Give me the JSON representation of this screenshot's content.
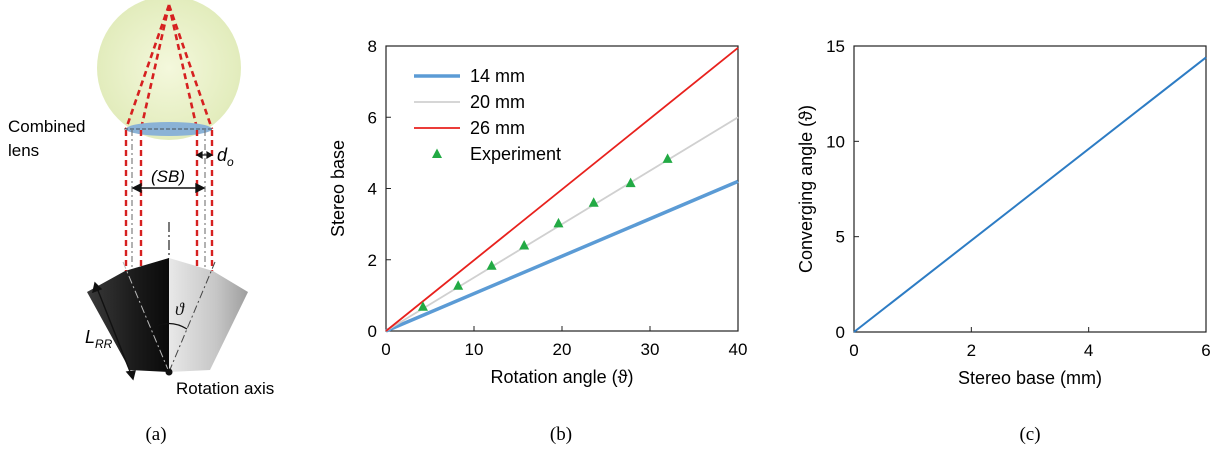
{
  "panel_a": {
    "lens_label_line1": "Combined",
    "lens_label_line2": "lens",
    "sb_label": "(SB)",
    "do_label_main": "d",
    "do_label_sub": "o",
    "theta_label": "ϑ",
    "lrr_label_main": "L",
    "lrr_label_sub": "RR",
    "rotation_axis_label": "Rotation axis",
    "caption": "(a)",
    "colors": {
      "glow": "#e9f1c6",
      "lens": "#8ab2d6",
      "dash": "#d62020"
    }
  },
  "panel_b": {
    "caption": "(b)"
  },
  "panel_c": {
    "caption": "(c)"
  },
  "chart_data": [
    {
      "type": "line",
      "xlabel": "Rotation angle (ϑ)",
      "ylabel": "Stereo base",
      "xlim": [
        0,
        40
      ],
      "ylim": [
        0,
        8
      ],
      "xticks": [
        0,
        10,
        20,
        30,
        40
      ],
      "yticks": [
        0,
        2,
        4,
        6,
        8
      ],
      "legend_position": "top-left",
      "series": [
        {
          "name": "14 mm",
          "kind": "line",
          "color": "#5b9bd5",
          "width": 3.5,
          "x": [
            0,
            40
          ],
          "y": [
            0,
            4.2
          ]
        },
        {
          "name": "20 mm",
          "kind": "line",
          "color": "#d0d0d0",
          "width": 1.8,
          "x": [
            0,
            40
          ],
          "y": [
            0,
            6.0
          ]
        },
        {
          "name": "26 mm",
          "kind": "line",
          "color": "#e8211d",
          "width": 1.8,
          "x": [
            0,
            40
          ],
          "y": [
            0,
            7.95
          ]
        },
        {
          "name": "Experiment",
          "kind": "scatter",
          "marker": "triangle",
          "color": "#22aa44",
          "x": [
            4.2,
            8.2,
            12.0,
            15.7,
            19.6,
            23.6,
            27.8,
            32.0
          ],
          "y": [
            0.68,
            1.27,
            1.83,
            2.4,
            3.02,
            3.6,
            4.15,
            4.83
          ]
        }
      ]
    },
    {
      "type": "line",
      "xlabel": "Stereo base (mm)",
      "ylabel": "Converging angle (ϑ)",
      "xlim": [
        0,
        6
      ],
      "ylim": [
        0,
        15
      ],
      "xticks": [
        0,
        2,
        4,
        6
      ],
      "yticks": [
        0,
        5,
        10,
        15
      ],
      "series": [
        {
          "kind": "line",
          "color": "#2d7cc4",
          "width": 2,
          "x": [
            0,
            6
          ],
          "y": [
            0,
            14.4
          ]
        }
      ]
    }
  ]
}
